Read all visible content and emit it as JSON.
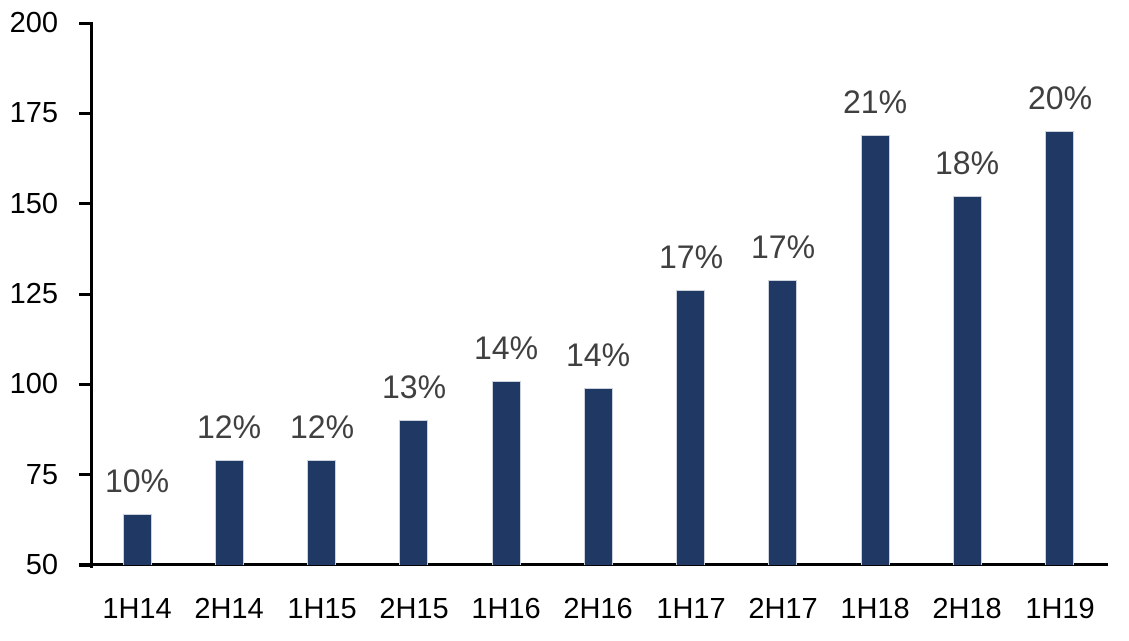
{
  "chart_data": {
    "type": "bar",
    "title": "",
    "xlabel": "",
    "ylabel": "",
    "categories": [
      "1H14",
      "2H14",
      "1H15",
      "2H15",
      "1H16",
      "2H16",
      "1H17",
      "2H17",
      "1H18",
      "2H18",
      "1H19"
    ],
    "values": [
      64,
      79,
      79,
      90,
      101,
      99,
      126,
      129,
      169,
      152,
      170
    ],
    "data_labels": [
      "10%",
      "12%",
      "12%",
      "13%",
      "14%",
      "14%",
      "17%",
      "17%",
      "21%",
      "18%",
      "20%"
    ],
    "ylim": [
      50,
      200
    ],
    "y_ticks": [
      "50",
      "75",
      "100",
      "125",
      "150",
      "175",
      "200"
    ],
    "y_tick_values": [
      50,
      75,
      100,
      125,
      150,
      175,
      200
    ],
    "grid": false,
    "legend": null,
    "colors": {
      "bar_fill": "#1f3864",
      "bar_border": "#ccd2dc",
      "data_label_text": "#404040",
      "axis_text": "#000000",
      "axis_line": "#000000",
      "background": "#ffffff"
    }
  }
}
